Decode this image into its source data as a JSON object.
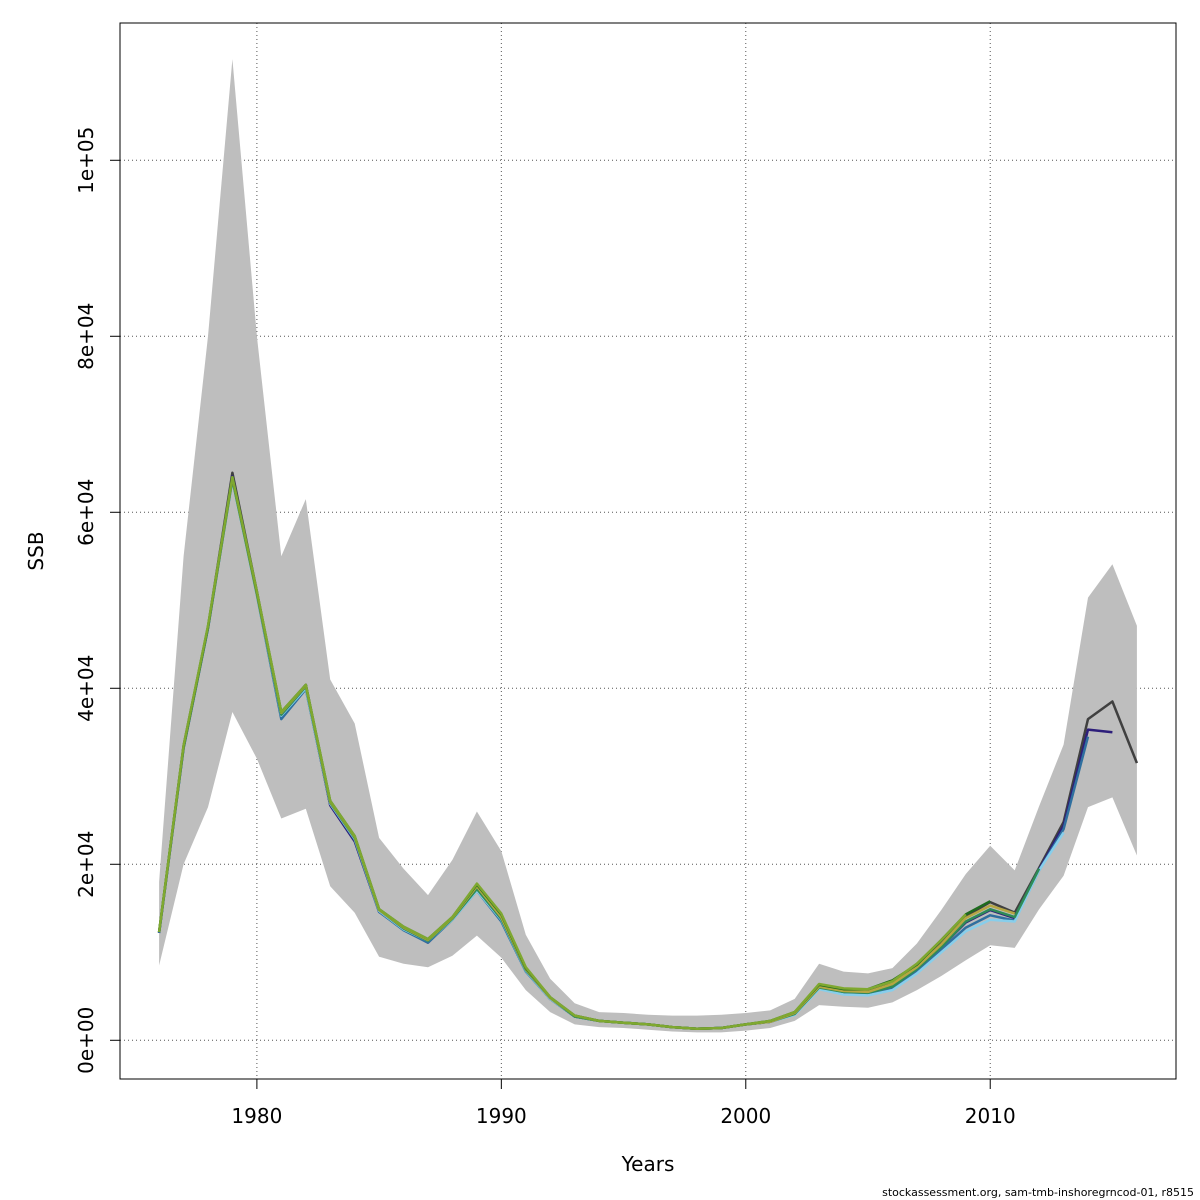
{
  "chart_data": {
    "type": "line",
    "xlabel": "Years",
    "ylabel": "SSB",
    "xlim": [
      1974.4,
      2017.6
    ],
    "ylim": [
      -4400,
      115600
    ],
    "x_ticks": [
      1980,
      1990,
      2000,
      2010
    ],
    "y_ticks": [
      0,
      20000,
      40000,
      60000,
      80000,
      100000
    ],
    "y_tick_labels": [
      "0e+00",
      "2e+04",
      "4e+04",
      "6e+04",
      "8e+04",
      "1e+05"
    ],
    "grid": true,
    "legend": "none",
    "band": {
      "color": "#bebebe",
      "x": [
        1976,
        1977,
        1978,
        1979,
        1980,
        1981,
        1982,
        1983,
        1984,
        1985,
        1986,
        1987,
        1988,
        1989,
        1990,
        1991,
        1992,
        1993,
        1994,
        1995,
        1996,
        1997,
        1998,
        1999,
        2000,
        2001,
        2002,
        2003,
        2004,
        2005,
        2006,
        2007,
        2008,
        2009,
        2010,
        2011,
        2012,
        2013,
        2014,
        2015,
        2016
      ],
      "lower": [
        8500,
        20000,
        26500,
        37300,
        32000,
        25200,
        26300,
        17500,
        14500,
        9500,
        8700,
        8300,
        9600,
        11900,
        9400,
        5700,
        3200,
        1800,
        1500,
        1400,
        1200,
        1000,
        900,
        900,
        1100,
        1400,
        2200,
        4000,
        3800,
        3700,
        4300,
        5700,
        7300,
        9100,
        10800,
        10500,
        14900,
        18700,
        26500,
        27600,
        21000
      ],
      "upper": [
        18000,
        55000,
        80000,
        111500,
        80000,
        55000,
        61500,
        41000,
        36000,
        23000,
        19500,
        16500,
        20500,
        26000,
        21500,
        12000,
        7000,
        4200,
        3200,
        3100,
        2900,
        2800,
        2800,
        2900,
        3100,
        3400,
        4700,
        8700,
        7800,
        7600,
        8200,
        11000,
        14800,
        18900,
        22100,
        19300,
        26600,
        33600,
        50300,
        54100,
        47100
      ]
    },
    "series": [
      {
        "color": "#404040",
        "x": [
          1976,
          1977,
          1978,
          1979,
          1980,
          1981,
          1982,
          1983,
          1984,
          1985,
          1986,
          1987,
          1988,
          1989,
          1990,
          1991,
          1992,
          1993,
          1994,
          1995,
          1996,
          1997,
          1998,
          1999,
          2000,
          2001,
          2002,
          2003,
          2004,
          2005,
          2006,
          2007,
          2008,
          2009,
          2010,
          2011,
          2012,
          2013,
          2014,
          2015,
          2016
        ],
        "values": [
          12200,
          33500,
          47000,
          64500,
          51000,
          37000,
          40400,
          26800,
          22700,
          14700,
          12700,
          11200,
          13900,
          17400,
          13700,
          8000,
          4700,
          2700,
          2200,
          2000,
          1800,
          1500,
          1300,
          1400,
          1800,
          2100,
          3000,
          6100,
          5600,
          5600,
          6400,
          8400,
          11000,
          14100,
          15700,
          14500,
          19600,
          24800,
          36500,
          38500,
          31500
        ]
      },
      {
        "color": "#2d1e7a",
        "x": [
          1976,
          1977,
          1978,
          1979,
          1980,
          1981,
          1982,
          1983,
          1984,
          1985,
          1986,
          1987,
          1988,
          1989,
          1990,
          1991,
          1992,
          1993,
          1994,
          1995,
          1996,
          1997,
          1998,
          1999,
          2000,
          2001,
          2002,
          2003,
          2004,
          2005,
          2006,
          2007,
          2008,
          2009,
          2010,
          2011,
          2012,
          2013,
          2014,
          2015
        ],
        "values": [
          12200,
          33300,
          46900,
          64100,
          50800,
          36700,
          40100,
          26700,
          22600,
          14600,
          12600,
          11100,
          13800,
          17200,
          13600,
          7900,
          4700,
          2700,
          2200,
          2000,
          1800,
          1500,
          1300,
          1400,
          1800,
          2100,
          3000,
          6000,
          5500,
          5400,
          6200,
          8100,
          10600,
          13400,
          14800,
          13900,
          19400,
          24400,
          35300,
          35000
        ]
      },
      {
        "color": "#2f6f9f",
        "x": [
          1976,
          1977,
          1978,
          1979,
          1980,
          1981,
          1982,
          1983,
          1984,
          1985,
          1986,
          1987,
          1988,
          1989,
          1990,
          1991,
          1992,
          1993,
          1994,
          1995,
          1996,
          1997,
          1998,
          1999,
          2000,
          2001,
          2002,
          2003,
          2004,
          2005,
          2006,
          2007,
          2008,
          2009,
          2010,
          2011,
          2012,
          2013,
          2014
        ],
        "values": [
          12200,
          33200,
          46800,
          63800,
          50600,
          36500,
          39900,
          26900,
          22800,
          14600,
          12500,
          11100,
          13700,
          17000,
          13500,
          7800,
          4700,
          2700,
          2200,
          2000,
          1800,
          1500,
          1300,
          1400,
          1800,
          2100,
          3000,
          5900,
          5300,
          5200,
          5900,
          7900,
          10300,
          12800,
          14200,
          13600,
          19300,
          24000,
          34500
        ]
      },
      {
        "color": "#87ceeb",
        "x": [
          1976,
          1977,
          1978,
          1979,
          1980,
          1981,
          1982,
          1983,
          1984,
          1985,
          1986,
          1987,
          1988,
          1989,
          1990,
          1991,
          1992,
          1993,
          1994,
          1995,
          1996,
          1997,
          1998,
          1999,
          2000,
          2001,
          2002,
          2003,
          2004,
          2005,
          2006,
          2007,
          2008,
          2009,
          2010,
          2011,
          2012,
          2013
        ],
        "values": [
          12300,
          33400,
          47100,
          63600,
          50600,
          36900,
          40000,
          26900,
          22900,
          14700,
          12600,
          11300,
          13700,
          17000,
          13700,
          7900,
          4700,
          2700,
          2200,
          2000,
          1800,
          1500,
          1300,
          1400,
          1800,
          2100,
          2900,
          5800,
          5200,
          5100,
          5700,
          7600,
          10000,
          12400,
          13700,
          13500,
          19300,
          23600
        ]
      },
      {
        "color": "#2e8b57",
        "x": [
          1976,
          1977,
          1978,
          1979,
          1980,
          1981,
          1982,
          1983,
          1984,
          1985,
          1986,
          1987,
          1988,
          1989,
          1990,
          1991,
          1992,
          1993,
          1994,
          1995,
          1996,
          1997,
          1998,
          1999,
          2000,
          2001,
          2002,
          2003,
          2004,
          2005,
          2006,
          2007,
          2008,
          2009,
          2010,
          2011,
          2012
        ],
        "values": [
          12300,
          33300,
          46900,
          63700,
          50700,
          37000,
          40200,
          27000,
          23000,
          14800,
          12700,
          11300,
          13800,
          17200,
          13800,
          8000,
          4800,
          2700,
          2200,
          2000,
          1800,
          1500,
          1300,
          1400,
          1800,
          2100,
          3000,
          6000,
          5500,
          5400,
          6100,
          8100,
          10600,
          13500,
          14900,
          14000,
          19500
        ]
      },
      {
        "color": "#b5a642",
        "x": [
          1976,
          1977,
          1978,
          1979,
          1980,
          1981,
          1982,
          1983,
          1984,
          1985,
          1986,
          1987,
          1988,
          1989,
          1990,
          1991,
          1992,
          1993,
          1994,
          1995,
          1996,
          1997,
          1998,
          1999,
          2000,
          2001,
          2002,
          2003,
          2004,
          2005,
          2006,
          2007,
          2008,
          2009,
          2010,
          2011
        ],
        "values": [
          12300,
          33400,
          47000,
          63900,
          50800,
          37200,
          40300,
          27100,
          23100,
          14800,
          12800,
          11400,
          13900,
          17500,
          14000,
          8100,
          4800,
          2800,
          2200,
          2000,
          1800,
          1500,
          1300,
          1400,
          1800,
          2100,
          3100,
          6100,
          5600,
          5500,
          6400,
          8300,
          10900,
          13900,
          15300,
          14400
        ]
      },
      {
        "color": "#1e6b1e",
        "x": [
          1976,
          1977,
          1978,
          1979,
          1980,
          1981,
          1982,
          1983,
          1984,
          1985,
          1986,
          1987,
          1988,
          1989,
          1990,
          1991,
          1992,
          1993,
          1994,
          1995,
          1996,
          1997,
          1998,
          1999,
          2000,
          2001,
          2002,
          2003,
          2004,
          2005,
          2006,
          2007,
          2008,
          2009,
          2010
        ],
        "values": [
          12300,
          33400,
          47000,
          64000,
          50900,
          37300,
          40400,
          27200,
          23200,
          14900,
          12900,
          11500,
          14000,
          17700,
          14300,
          8200,
          4900,
          2800,
          2200,
          2000,
          1800,
          1500,
          1300,
          1400,
          1800,
          2200,
          3200,
          6300,
          5800,
          5800,
          6800,
          8600,
          11400,
          14300,
          15800
        ]
      },
      {
        "color": "#7fa830",
        "x": [
          1976,
          1977,
          1978,
          1979,
          1980,
          1981,
          1982,
          1983,
          1984,
          1985,
          1986,
          1987,
          1988,
          1989,
          1990,
          1991,
          1992,
          1993,
          1994,
          1995,
          1996,
          1997,
          1998,
          1999,
          2000,
          2001,
          2002,
          2003,
          2004,
          2005,
          2006,
          2007,
          2008,
          2009
        ],
        "values": [
          12300,
          33500,
          47100,
          64000,
          51000,
          37300,
          40400,
          27200,
          23200,
          14900,
          12900,
          11500,
          14000,
          17800,
          14400,
          8300,
          4900,
          2800,
          2200,
          2000,
          1800,
          1500,
          1300,
          1400,
          1800,
          2200,
          3200,
          6400,
          5900,
          5800,
          6700,
          8700,
          11400,
          14300
        ]
      }
    ]
  },
  "footer": "stockassessment.org, sam-tmb-inshoregrncod-01, r8515"
}
